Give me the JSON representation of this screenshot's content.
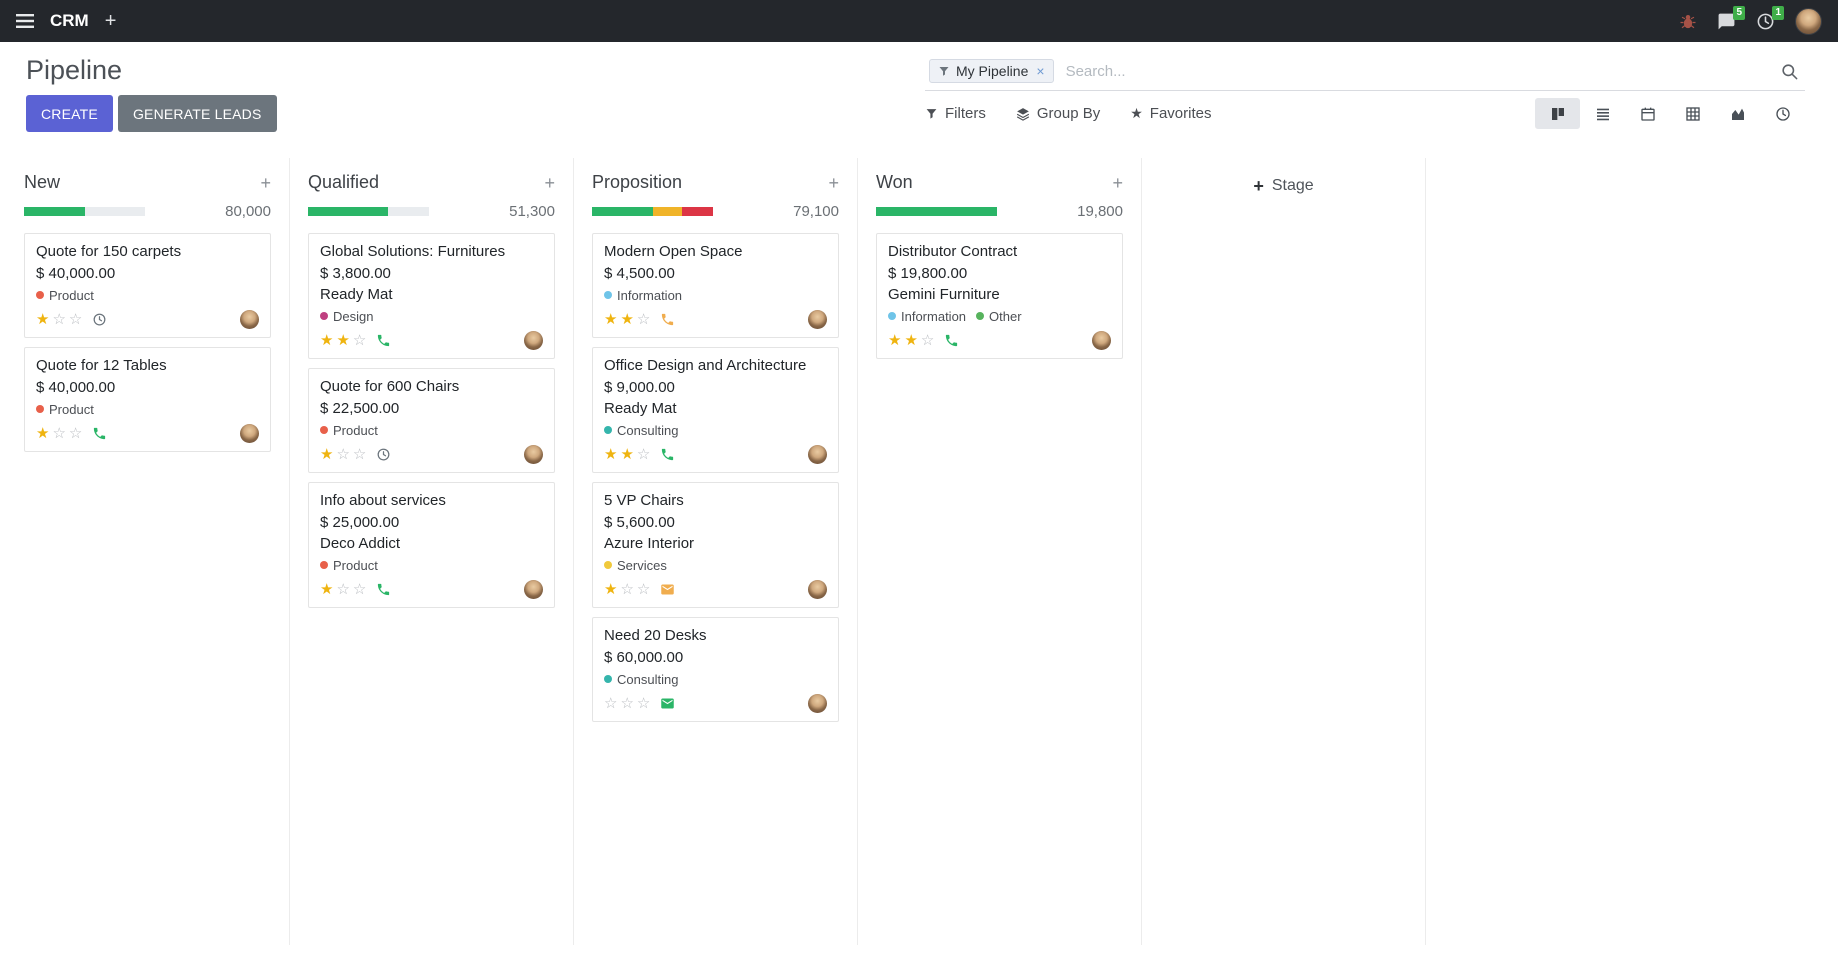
{
  "theme": {
    "accent": "#5b62d4",
    "muted_btn": "#6c757d",
    "success": "#2ab567",
    "warning": "#f0b429",
    "danger": "#dc3545",
    "star_gold": "#efb410",
    "star_empty_color": "#b9bcc0"
  },
  "icons": {
    "plus": "+",
    "facet_remove": "×",
    "favorites": "★",
    "star_filled": "★",
    "star_empty": "☆"
  },
  "navbar": {
    "app": "CRM",
    "messages_badge": "5",
    "activities_badge": "1"
  },
  "control_panel": {
    "title": "Pipeline",
    "create": "CREATE",
    "generate_leads": "GENERATE LEADS",
    "filters": "Filters",
    "group_by": "Group By",
    "favorites": "Favorites",
    "facet": "My Pipeline",
    "search_placeholder": "Search...",
    "active_view": "kanban"
  },
  "board": {
    "add_stage": "Stage",
    "columns": [
      {
        "name": "New",
        "total": "80,000",
        "progress": [
          {
            "color": "#2ab567",
            "pct": 50
          }
        ],
        "cards": [
          {
            "title": "Quote for 150 carpets",
            "amount": "$ 40,000.00",
            "tags": [
              {
                "label": "Product",
                "color": "#e8604a"
              }
            ],
            "stars": 1,
            "activity": {
              "icon": "clock",
              "color": "#6c757d"
            }
          },
          {
            "title": "Quote for 12 Tables",
            "amount": "$ 40,000.00",
            "tags": [
              {
                "label": "Product",
                "color": "#e8604a"
              }
            ],
            "stars": 1,
            "activity": {
              "icon": "phone",
              "color": "#2ab567"
            }
          }
        ]
      },
      {
        "name": "Qualified",
        "total": "51,300",
        "progress": [
          {
            "color": "#2ab567",
            "pct": 66
          }
        ],
        "cards": [
          {
            "title": "Global Solutions: Furnitures",
            "amount": "$ 3,800.00",
            "partner": "Ready Mat",
            "tags": [
              {
                "label": "Design",
                "color": "#bf4080"
              }
            ],
            "stars": 2,
            "activity": {
              "icon": "phone",
              "color": "#2ab567"
            }
          },
          {
            "title": "Quote for 600 Chairs",
            "amount": "$ 22,500.00",
            "tags": [
              {
                "label": "Product",
                "color": "#e8604a"
              }
            ],
            "stars": 1,
            "activity": {
              "icon": "clock",
              "color": "#6c757d"
            }
          },
          {
            "title": "Info about services",
            "amount": "$ 25,000.00",
            "partner": "Deco Addict",
            "tags": [
              {
                "label": "Product",
                "color": "#e8604a"
              }
            ],
            "stars": 1,
            "activity": {
              "icon": "phone",
              "color": "#2ab567"
            }
          }
        ]
      },
      {
        "name": "Proposition",
        "total": "79,100",
        "progress": [
          {
            "color": "#2ab567",
            "pct": 50
          },
          {
            "color": "#f0b429",
            "pct": 24
          },
          {
            "color": "#dc3545",
            "pct": 26
          }
        ],
        "cards": [
          {
            "title": "Modern Open Space",
            "amount": "$ 4,500.00",
            "tags": [
              {
                "label": "Information",
                "color": "#6fc4e8"
              }
            ],
            "stars": 2,
            "activity": {
              "icon": "phone",
              "color": "#f0ad4e"
            }
          },
          {
            "title": "Office Design and Architecture",
            "amount": "$ 9,000.00",
            "partner": "Ready Mat",
            "tags": [
              {
                "label": "Consulting",
                "color": "#35b5ac"
              }
            ],
            "stars": 2,
            "activity": {
              "icon": "phone",
              "color": "#2ab567"
            }
          },
          {
            "title": "5 VP Chairs",
            "amount": "$ 5,600.00",
            "partner": "Azure Interior",
            "tags": [
              {
                "label": "Services",
                "color": "#f0c93c"
              }
            ],
            "stars": 1,
            "activity": {
              "icon": "envelope",
              "color": "#f0ad4e"
            }
          },
          {
            "title": "Need 20 Desks",
            "amount": "$ 60,000.00",
            "tags": [
              {
                "label": "Consulting",
                "color": "#35b5ac"
              }
            ],
            "stars": 0,
            "activity": {
              "icon": "envelope",
              "color": "#2ab567"
            }
          }
        ]
      },
      {
        "name": "Won",
        "total": "19,800",
        "progress": [
          {
            "color": "#2ab567",
            "pct": 100
          }
        ],
        "cards": [
          {
            "title": "Distributor Contract",
            "amount": "$ 19,800.00",
            "partner": "Gemini Furniture",
            "tags": [
              {
                "label": "Information",
                "color": "#6fc4e8"
              },
              {
                "label": "Other",
                "color": "#57b35d"
              }
            ],
            "stars": 2,
            "activity": {
              "icon": "phone",
              "color": "#2ab567"
            }
          }
        ]
      }
    ]
  }
}
